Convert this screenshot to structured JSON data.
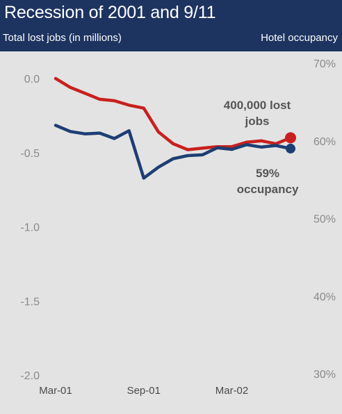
{
  "header": {
    "title": "Recession of 2001 and 9/11",
    "left_axis_title": "Total lost jobs (in millions)",
    "right_axis_title": "Hotel occupancy"
  },
  "chart_data": {
    "type": "line",
    "title": "Recession of 2001 and 9/11",
    "x": [
      "Mar-01",
      "Apr-01",
      "May-01",
      "Jun-01",
      "Jul-01",
      "Aug-01",
      "Sep-01",
      "Oct-01",
      "Nov-01",
      "Dec-01",
      "Jan-02",
      "Feb-02",
      "Mar-02",
      "Apr-02",
      "May-02",
      "Jun-02",
      "Jul-02"
    ],
    "x_tick_labels": [
      "Mar-01",
      "Sep-01",
      "Mar-02"
    ],
    "left_axis": {
      "label": "Total lost jobs (in millions)",
      "range": [
        -2.0,
        0.0
      ],
      "ticks": [
        "0.0",
        "-0.5",
        "-1.0",
        "-1.5",
        "-2.0"
      ],
      "tick_values": [
        0.0,
        -0.5,
        -1.0,
        -1.5,
        -2.0
      ]
    },
    "right_axis": {
      "label": "Hotel occupancy",
      "range": [
        30,
        70
      ],
      "ticks": [
        "70%",
        "60%",
        "50%",
        "40%",
        "30%"
      ],
      "tick_values": [
        70,
        60,
        50,
        40,
        30
      ]
    },
    "series": [
      {
        "axis": "left",
        "color": "#c8201e",
        "values": [
          0.0,
          -0.06,
          -0.1,
          -0.14,
          -0.15,
          -0.18,
          -0.2,
          -0.36,
          -0.44,
          -0.48,
          -0.47,
          -0.46,
          -0.46,
          -0.43,
          -0.42,
          -0.44,
          -0.4
        ]
      },
      {
        "axis": "right",
        "color": "#1d3e73",
        "values": [
          62.0,
          61.2,
          60.9,
          61.0,
          60.3,
          61.3,
          55.2,
          56.6,
          57.7,
          58.1,
          58.2,
          59.1,
          58.9,
          59.5,
          59.2,
          59.4,
          59.0
        ]
      }
    ],
    "annotations": [
      {
        "lines": [
          "400,000 lost",
          "jobs"
        ]
      },
      {
        "lines": [
          "59%",
          "occupancy"
        ]
      }
    ],
    "grid": false
  }
}
